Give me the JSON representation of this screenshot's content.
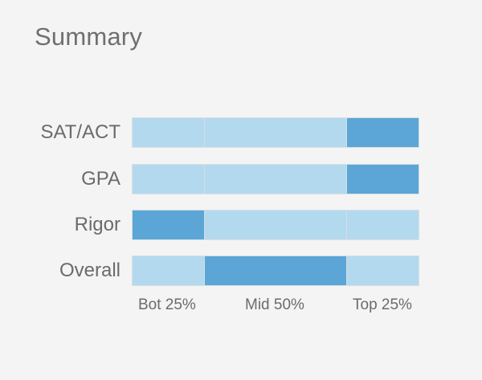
{
  "summary": {
    "title": "Summary",
    "colors": {
      "segment_light": "#b3d9ee",
      "segment_active": "#5ba6d6",
      "background": "#f4f4f4"
    },
    "rows": [
      {
        "label": "SAT/ACT",
        "active_segment": "top"
      },
      {
        "label": "GPA",
        "active_segment": "top"
      },
      {
        "label": "Rigor",
        "active_segment": "bot"
      },
      {
        "label": "Overall",
        "active_segment": "mid"
      }
    ],
    "axis": {
      "bot_label": "Bot 25%",
      "mid_label": "Mid 50%",
      "top_label": "Top 25%"
    }
  }
}
